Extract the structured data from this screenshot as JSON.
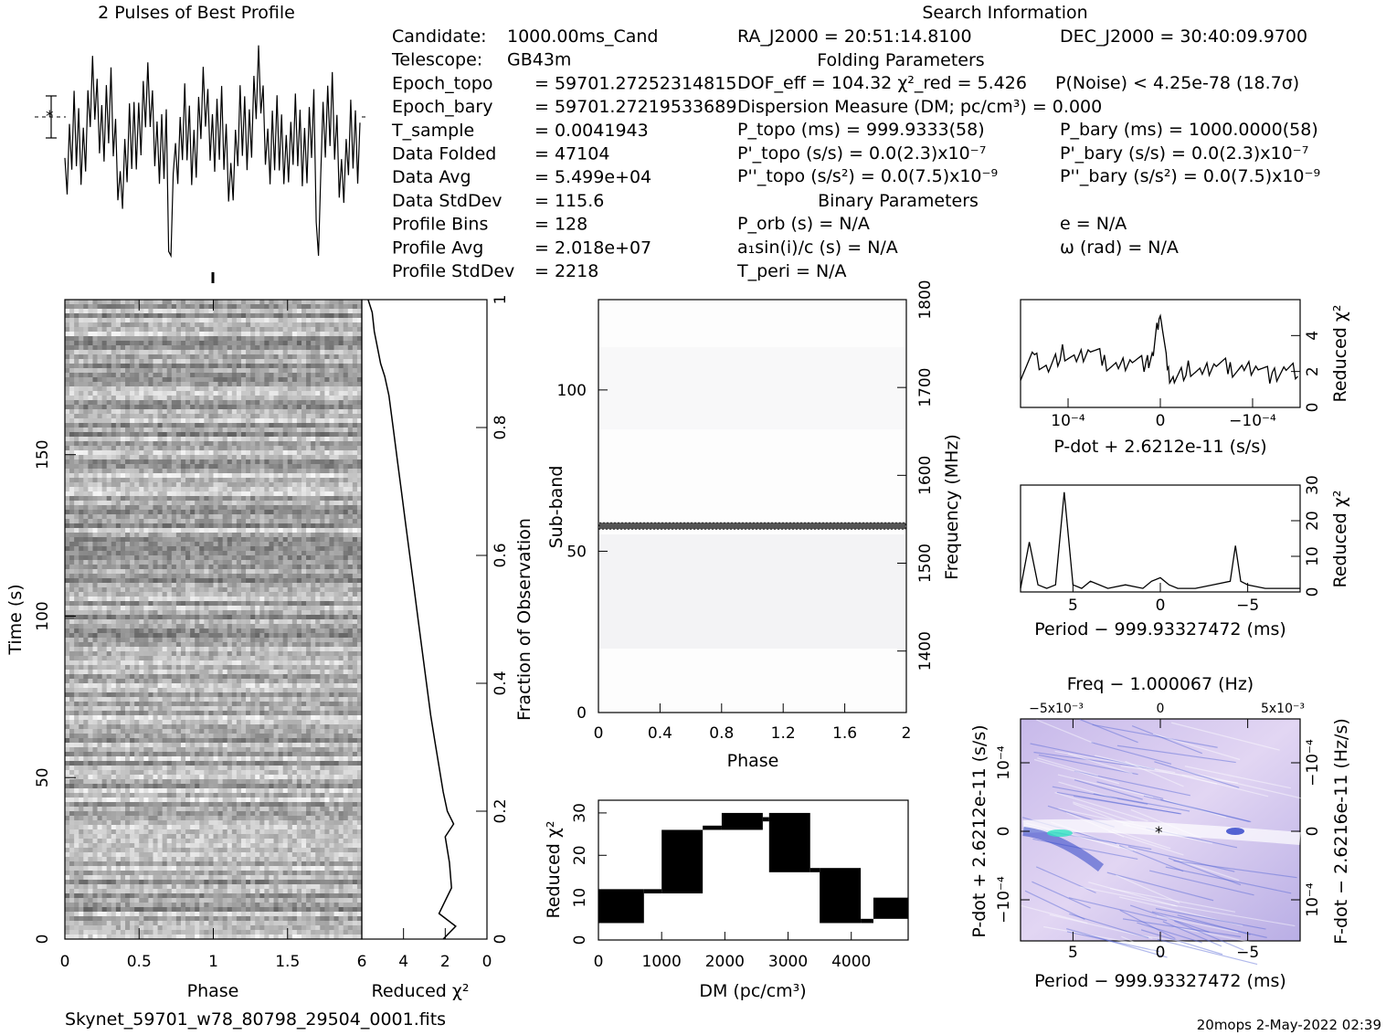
{
  "profile_title": "2 Pulses of Best Profile",
  "search": {
    "title": "Search Information",
    "folding_title": "Folding Parameters",
    "binary_title": "Binary Parameters"
  },
  "params_left": [
    {
      "label": "Candidate:",
      "value": "1000.00ms_Cand"
    },
    {
      "label": "Telescope:",
      "value": "GB43m"
    },
    {
      "label": "Epoch_topo",
      "value": "= 59701.27252314815"
    },
    {
      "label": "Epoch_bary",
      "value": "= 59701.27219533689"
    },
    {
      "label": "T_sample",
      "value": "=   0.0041943"
    },
    {
      "label": "Data Folded",
      "value": "=   47104"
    },
    {
      "label": "Data Avg",
      "value": "=   5.499e+04"
    },
    {
      "label": "Data StdDev",
      "value": "=   115.6"
    },
    {
      "label": "Profile Bins",
      "value": "=   128"
    },
    {
      "label": "Profile Avg",
      "value": "=   2.018e+07"
    },
    {
      "label": "Profile StdDev",
      "value": "=   2218"
    }
  ],
  "params_right": {
    "ra": "RA_J2000 = 20:51:14.8100",
    "dec": "DEC_J2000 = 30:40:09.9700",
    "dof": "DOF_eff = 104.32  χ²_red = 5.426",
    "pnoise": "P(Noise) < 4.25e-78   (18.7σ)",
    "dm": "Dispersion Measure (DM; pc/cm³) = 0.000",
    "ptopo": "P_topo (ms) =  999.9333(58)",
    "pbary": "P_bary (ms) =  1000.0000(58)",
    "pdtopo": "P'_topo (s/s) = 0.0(2.3)x10⁻⁷",
    "pdbary": "P'_bary (s/s) = 0.0(2.3)x10⁻⁷",
    "pddtopo": "P''_topo (s/s²) = 0.0(7.5)x10⁻⁹",
    "pddbary": "P''_bary (s/s²) = 0.0(7.5)x10⁻⁹",
    "porb": "P_orb (s) = N/A",
    "e": "e = N/A",
    "asini": "a₁sin(i)/c (s) = N/A",
    "omega": "ω (rad) = N/A",
    "tperi": "T_peri = N/A"
  },
  "footer_file": "Skynet_59701_w78_80798_29504_0001.fits",
  "footer_right": "20mops   2-May-2022 02:39",
  "colors": {
    "ppdot_bg": "#d6c8ec",
    "ppdot_streak": "#3d55d0",
    "subband_line": "#444444"
  },
  "chart_data": [
    {
      "type": "line",
      "name": "profile",
      "title": "2 Pulses of Best Profile",
      "x": [
        0,
        0.0625,
        0.125,
        0.1875,
        0.25,
        0.3125,
        0.375,
        0.4375,
        0.5,
        0.5625,
        0.625,
        0.6875,
        0.7,
        0.72,
        0.75,
        0.8125,
        0.875,
        0.9375,
        1.0,
        1.0625,
        1.125,
        1.1875,
        1.25,
        1.3125,
        1.375,
        1.4375,
        1.5,
        1.5625,
        1.625,
        1.6875,
        1.7,
        1.72,
        1.75,
        1.8125,
        1.875,
        1.9375,
        2.0
      ],
      "y": [
        0.55,
        0.35,
        0.6,
        0.3,
        0.5,
        0.25,
        0.62,
        0.4,
        0.48,
        0.33,
        0.58,
        0.45,
        0.95,
        0.2,
        0.5,
        0.3,
        0.6,
        0.35,
        0.55,
        0.35,
        0.6,
        0.3,
        0.5,
        0.25,
        0.62,
        0.4,
        0.48,
        0.33,
        0.58,
        0.45,
        0.95,
        0.2,
        0.5,
        0.3,
        0.6,
        0.35,
        0.55
      ]
    },
    {
      "type": "heatmap",
      "name": "time-phase",
      "xlabel": "Phase",
      "ylabel": "Time (s)",
      "x_ticks": [
        "0",
        "0.5",
        "1",
        "1.5"
      ],
      "y_ticks": [
        "0",
        "50",
        "100",
        "150"
      ],
      "xlim": [
        0,
        2
      ],
      "ylim": [
        0,
        198
      ]
    },
    {
      "type": "line",
      "name": "reduced-chi2-vs-fraction",
      "xlabel": "Reduced χ²",
      "ylabel": "Fraction of Observation",
      "x_ticks": [
        "6",
        "4",
        "2",
        "0"
      ],
      "y_ticks": [
        "0",
        "0.2",
        "0.4",
        "0.6",
        "0.8",
        "1"
      ],
      "xlim": [
        6,
        0
      ],
      "ylim": [
        0,
        1
      ],
      "x": [
        2.1,
        1.5,
        2.3,
        1.7,
        1.8,
        2.0,
        1.6,
        1.9,
        2.1,
        2.3,
        2.5,
        2.7,
        2.9,
        3.1,
        3.3,
        3.5,
        3.7,
        3.9,
        4.1,
        4.3,
        4.5,
        4.7,
        4.9,
        5.1,
        5.4,
        5.5,
        5.7
      ],
      "y": [
        0.0,
        0.02,
        0.04,
        0.08,
        0.12,
        0.16,
        0.18,
        0.2,
        0.23,
        0.27,
        0.31,
        0.35,
        0.4,
        0.45,
        0.5,
        0.55,
        0.6,
        0.65,
        0.7,
        0.75,
        0.8,
        0.85,
        0.88,
        0.9,
        0.95,
        0.98,
        1.0
      ]
    },
    {
      "type": "heatmap",
      "name": "subband-phase",
      "xlabel": "Phase",
      "ylabel": "Sub-band",
      "y2label": "Frequency (MHz)",
      "x_ticks": [
        "0",
        "0.4",
        "0.8",
        "1.2",
        "1.6",
        "2"
      ],
      "y_ticks": [
        "0",
        "50",
        "100"
      ],
      "y2_ticks": [
        "1400",
        "1500",
        "1600",
        "1700",
        "1800"
      ],
      "xlim": [
        0,
        2
      ],
      "ylim": [
        0,
        128
      ],
      "highlight_subband": 58
    },
    {
      "type": "line",
      "name": "dm-chi2",
      "xlabel": "DM (pc/cm³)",
      "ylabel": "Reduced χ²",
      "x_ticks": [
        "0",
        "1000",
        "2000",
        "3000",
        "4000"
      ],
      "y_ticks": [
        "0",
        "10",
        "20",
        "30"
      ],
      "xlim": [
        0,
        4900
      ],
      "ylim": [
        0,
        33
      ],
      "steps": [
        [
          0,
          720,
          4,
          12
        ],
        [
          720,
          1000,
          11,
          12
        ],
        [
          1000,
          1650,
          11,
          26
        ],
        [
          1650,
          1950,
          26,
          27
        ],
        [
          1950,
          2600,
          26,
          30
        ],
        [
          2600,
          2700,
          28,
          29
        ],
        [
          2700,
          3350,
          16,
          30
        ],
        [
          3350,
          3500,
          16,
          17
        ],
        [
          3500,
          4150,
          4,
          17
        ],
        [
          4150,
          4350,
          4,
          5
        ],
        [
          4350,
          4900,
          5,
          10
        ]
      ]
    },
    {
      "type": "line",
      "name": "pdot-chi2",
      "xlabel": "P-dot + 2.6212e-11 (s/s)",
      "ylabel": "Reduced χ²",
      "x_ticks": [
        "10⁻⁴",
        "0",
        "−10⁻⁴"
      ],
      "y_ticks": [
        "0",
        "2",
        "4"
      ],
      "ylim": [
        0,
        6
      ],
      "x": [
        -1,
        -0.9,
        -0.8,
        -0.7,
        -0.6,
        -0.5,
        -0.4,
        -0.3,
        -0.2,
        -0.1,
        -0.05,
        0,
        0.05,
        0.1,
        0.2,
        0.3,
        0.4,
        0.5,
        0.6,
        0.7,
        0.8,
        0.9,
        1
      ],
      "y": [
        2.0,
        2.8,
        2.2,
        3.1,
        2.5,
        3.4,
        2.6,
        2.2,
        2.9,
        2.4,
        3.0,
        5.6,
        2.0,
        1.6,
        2.2,
        1.8,
        2.6,
        2.2,
        2.1,
        2.5,
        1.7,
        2.2,
        1.9
      ]
    },
    {
      "type": "line",
      "name": "period-chi2",
      "xlabel": "Period − 999.93327472 (ms)",
      "ylabel": "Reduced χ²",
      "x_ticks": [
        "5",
        "0",
        "−5"
      ],
      "y_ticks": [
        "0",
        "10",
        "20",
        "30"
      ],
      "ylim": [
        0,
        30
      ],
      "x": [
        8,
        7.5,
        7,
        6.5,
        6,
        5.5,
        5,
        4.5,
        4,
        3,
        2,
        1,
        0.5,
        0,
        -0.5,
        -1,
        -2,
        -3,
        -4,
        -4.3,
        -4.6,
        -5,
        -6,
        -7,
        -8
      ],
      "y": [
        1,
        14,
        2,
        1,
        2,
        28,
        2,
        1,
        3,
        1,
        2,
        1,
        3,
        4,
        2,
        1,
        1,
        2,
        3,
        13,
        3,
        2,
        1,
        1,
        1
      ]
    },
    {
      "type": "heatmap",
      "name": "period-pdot",
      "title": "Freq − 1.000067 (Hz)",
      "xlabel": "Period − 999.93327472 (ms)",
      "ylabel": "P-dot + 2.6212e-11 (s/s)",
      "y2label": "F-dot − 2.6216e-11 (Hz/s)",
      "x_ticks": [
        "5",
        "0",
        "−5"
      ],
      "x2_ticks": [
        "−5x10⁻³",
        "0",
        "5x10⁻³"
      ],
      "y_ticks": [
        "10⁻⁴",
        "0",
        "−10⁻⁴"
      ],
      "y2_ticks": [
        "−10⁻⁴",
        "0",
        "10⁻⁴"
      ]
    }
  ]
}
